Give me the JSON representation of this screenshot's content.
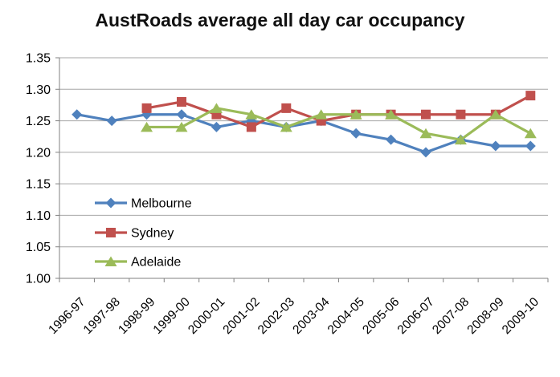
{
  "chart_data": {
    "type": "line",
    "title": "AustRoads average all day car occupancy",
    "xlabel": "",
    "ylabel": "",
    "ylim": [
      1.0,
      1.35
    ],
    "grid": true,
    "grid_color": "#A6A6A6",
    "axis_color": "#808080",
    "text_color": "#000000",
    "background": "#FFFFFF",
    "legend_position": "inside-left-bottom",
    "x_tick_rotation": -45,
    "y_ticks": [
      {
        "value": 1.0,
        "label": "1.00"
      },
      {
        "value": 1.05,
        "label": "1.05"
      },
      {
        "value": 1.1,
        "label": "1.10"
      },
      {
        "value": 1.15,
        "label": "1.15"
      },
      {
        "value": 1.2,
        "label": "1.20"
      },
      {
        "value": 1.25,
        "label": "1.25"
      },
      {
        "value": 1.3,
        "label": "1.30"
      },
      {
        "value": 1.35,
        "label": "1.35"
      }
    ],
    "categories": [
      "1996-97",
      "1997-98",
      "1998-99",
      "1999-00",
      "2000-01",
      "2001-02",
      "2002-03",
      "2003-04",
      "2004-05",
      "2005-06",
      "2006-07",
      "2007-08",
      "2008-09",
      "2009-10"
    ],
    "series": [
      {
        "name": "Melbourne",
        "color": "#4F81BD",
        "marker": "diamond",
        "values": [
          1.26,
          1.25,
          1.26,
          1.26,
          1.24,
          1.25,
          1.24,
          1.25,
          1.23,
          1.22,
          1.2,
          1.22,
          1.21,
          1.21
        ]
      },
      {
        "name": "Sydney",
        "color": "#C0504D",
        "marker": "square",
        "values": [
          null,
          null,
          1.27,
          1.28,
          1.26,
          1.24,
          1.27,
          1.25,
          1.26,
          1.26,
          1.26,
          1.26,
          1.26,
          1.29
        ]
      },
      {
        "name": "Adelaide",
        "color": "#9BBB59",
        "marker": "triangle",
        "values": [
          null,
          null,
          1.24,
          1.24,
          1.27,
          1.26,
          1.24,
          1.26,
          1.26,
          1.26,
          1.23,
          1.22,
          1.26,
          1.23
        ]
      }
    ]
  }
}
